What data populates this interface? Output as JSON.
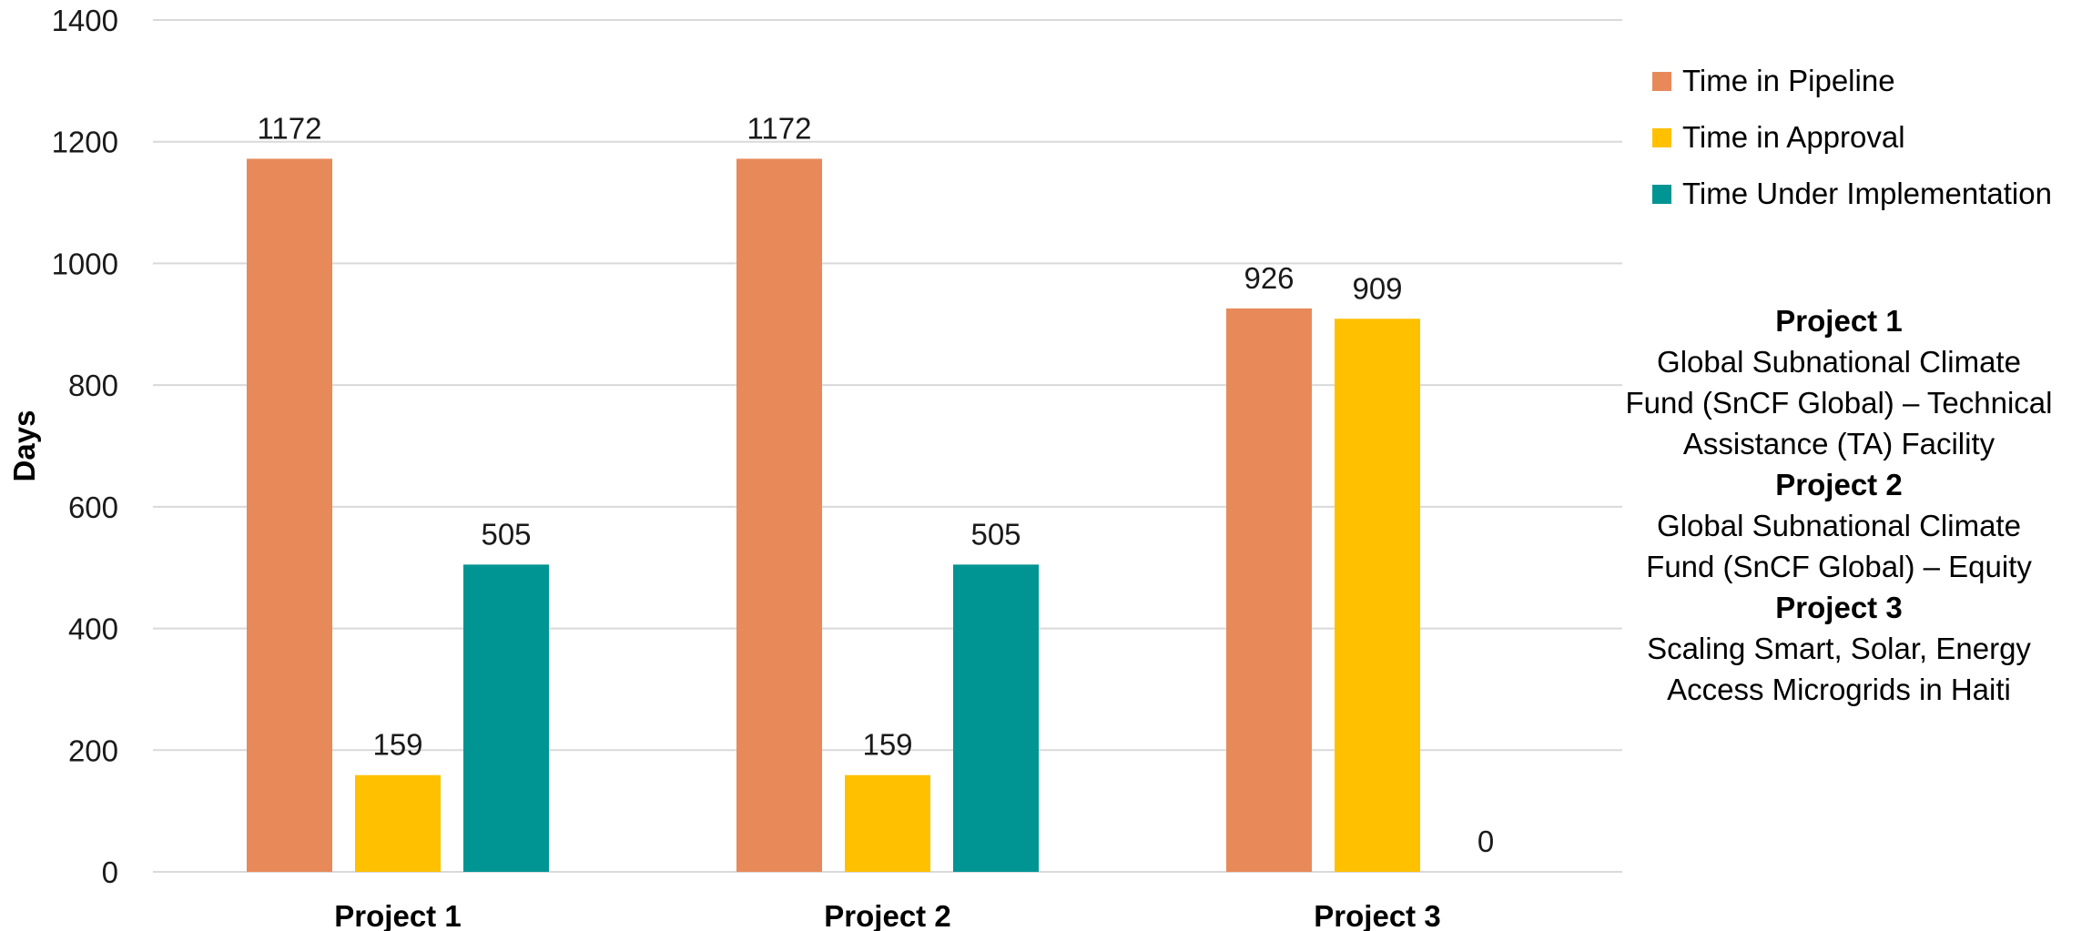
{
  "chart_data": {
    "type": "bar",
    "categories": [
      "Project 1",
      "Project 2",
      "Project 3"
    ],
    "series": [
      {
        "name": "Time in Pipeline",
        "color": "#E8895A",
        "values": [
          1172,
          1172,
          926
        ]
      },
      {
        "name": "Time in Approval",
        "color": "#FFC000",
        "values": [
          159,
          159,
          909
        ]
      },
      {
        "name": "Time Under Implementation",
        "color": "#009593",
        "values": [
          505,
          505,
          0
        ]
      }
    ],
    "ylabel": "Days",
    "ylim": [
      0,
      1400
    ],
    "yticks": [
      0,
      200,
      400,
      600,
      800,
      1000,
      1200,
      1400
    ],
    "grid": true,
    "legend_position": "right"
  },
  "notes": [
    {
      "title": "Project 1",
      "lines": [
        "Global Subnational Climate",
        "Fund (SnCF Global) – Technical",
        "Assistance (TA) Facility"
      ]
    },
    {
      "title": "Project 2",
      "lines": [
        "Global Subnational Climate",
        "Fund (SnCF Global) – Equity"
      ]
    },
    {
      "title": "Project 3",
      "lines": [
        "Scaling Smart, Solar, Energy",
        "Access Microgrids in Haiti"
      ]
    }
  ]
}
